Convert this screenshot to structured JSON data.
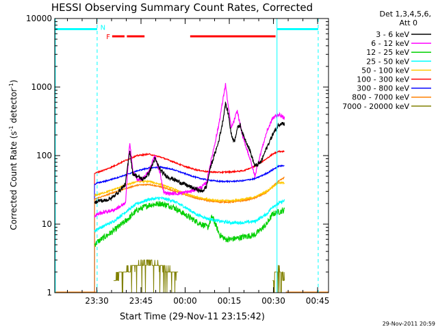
{
  "chart_data": {
    "type": "line",
    "title": "HESSI Observing Summary Count Rates, Corrected",
    "xlabel": "Start Time (29-Nov-11 23:15:42)",
    "ylabel_main": "Corrected Count Rate (s",
    "ylabel_sup1": "-1",
    "ylabel_mid": " detector",
    "ylabel_sup2": "-1",
    "ylabel_end": ")",
    "y_scale": "log",
    "ylim": [
      1,
      10000
    ],
    "xlim_minutes": [
      0,
      93
    ],
    "x_ticks": [
      {
        "min": 14.3,
        "label": "23:30"
      },
      {
        "min": 29.3,
        "label": "23:45"
      },
      {
        "min": 44.3,
        "label": "00:00"
      },
      {
        "min": 59.3,
        "label": "00:15"
      },
      {
        "min": 74.3,
        "label": "00:30"
      },
      {
        "min": 89.3,
        "label": "00:45"
      }
    ],
    "y_ticks": [
      {
        "value": 1,
        "label": "1"
      },
      {
        "value": 10,
        "label": "10"
      },
      {
        "value": 100,
        "label": "100"
      },
      {
        "value": 1000,
        "label": "1000"
      },
      {
        "value": 10000,
        "label": "10000"
      }
    ],
    "legend_header": [
      "Det 1,3,4,5,6,",
      "Att 0"
    ],
    "legend_position": "right",
    "series": [
      {
        "name": "3 - 6 keV",
        "color": "#000000",
        "noise": 0.07,
        "x": [
          13.5,
          14.5,
          17,
          20,
          24,
          25.5,
          26.5,
          28,
          30,
          32,
          34,
          36,
          38,
          42,
          46,
          50,
          51.5,
          53,
          55.5,
          57,
          58,
          59,
          60,
          61,
          62,
          63,
          64,
          66,
          68,
          70,
          72,
          74,
          76,
          77,
          78
        ],
        "y": [
          20,
          22,
          22,
          25,
          38,
          120,
          55,
          50,
          45,
          55,
          90,
          60,
          50,
          42,
          35,
          30,
          35,
          70,
          150,
          300,
          580,
          400,
          200,
          160,
          250,
          280,
          200,
          130,
          70,
          80,
          130,
          200,
          280,
          300,
          290
        ]
      },
      {
        "name": "6 - 12 keV",
        "color": "#ff00ff",
        "noise": 0.06,
        "x": [
          13.5,
          14.5,
          17,
          20,
          24,
          25.5,
          26.5,
          28,
          30,
          32,
          34,
          36,
          37,
          38,
          42,
          46,
          50,
          51.5,
          53,
          55.5,
          57,
          58,
          59,
          60,
          61,
          62,
          63,
          64,
          66,
          68,
          70,
          72,
          74,
          76,
          77,
          78
        ],
        "y": [
          13,
          14,
          15,
          16,
          20,
          160,
          60,
          45,
          45,
          60,
          100,
          50,
          30,
          28,
          28,
          30,
          35,
          40,
          80,
          250,
          600,
          1100,
          500,
          250,
          330,
          450,
          280,
          180,
          100,
          50,
          110,
          220,
          350,
          400,
          380,
          350
        ]
      },
      {
        "name": "12 - 25 keV",
        "color": "#00d000",
        "noise": 0.1,
        "x": [
          13.5,
          14.5,
          17,
          20,
          24,
          28,
          32,
          36,
          40,
          44,
          48,
          52,
          53.5,
          55,
          56,
          57,
          58,
          60,
          64,
          68,
          72,
          74,
          76,
          78
        ],
        "y": [
          5,
          5.5,
          6.5,
          8,
          11,
          16,
          19,
          20,
          18,
          14,
          11,
          9,
          13,
          9,
          7,
          6.5,
          6,
          6,
          6.5,
          7,
          10,
          14,
          15,
          16
        ]
      },
      {
        "name": "25 - 50 keV",
        "color": "#00ffff",
        "noise": 0.05,
        "x": [
          13.5,
          14.5,
          17,
          20,
          24,
          28,
          32,
          36,
          40,
          44,
          48,
          52,
          56,
          60,
          64,
          68,
          72,
          74,
          76,
          78
        ],
        "y": [
          8,
          8.5,
          9.5,
          11,
          15,
          20,
          23,
          24,
          22,
          18,
          14,
          12,
          11,
          10.5,
          10.5,
          11,
          14,
          18,
          20,
          22
        ]
      },
      {
        "name": "50 - 100 keV",
        "color": "#ffc800",
        "noise": 0.025,
        "x": [
          13.5,
          14.5,
          17,
          20,
          24,
          28,
          32,
          36,
          40,
          44,
          48,
          52,
          56,
          60,
          64,
          68,
          72,
          74,
          76,
          78
        ],
        "y": [
          26,
          27,
          29,
          32,
          37,
          42,
          42,
          38,
          33,
          28,
          25,
          23,
          22,
          22,
          23,
          25,
          30,
          35,
          40,
          40
        ]
      },
      {
        "name": "100 - 300 keV",
        "color": "#ff0000",
        "noise": 0.02,
        "x": [
          13.5,
          14.5,
          17,
          20,
          24,
          28,
          32,
          36,
          40,
          44,
          48,
          52,
          56,
          60,
          64,
          68,
          72,
          74,
          76,
          78
        ],
        "y": [
          55,
          57,
          62,
          70,
          85,
          100,
          105,
          95,
          82,
          70,
          62,
          58,
          57,
          58,
          60,
          70,
          90,
          105,
          115,
          115
        ]
      },
      {
        "name": "300 - 800 keV",
        "color": "#0000ff",
        "noise": 0.02,
        "x": [
          13.5,
          14.5,
          17,
          20,
          24,
          28,
          32,
          36,
          40,
          44,
          48,
          52,
          56,
          60,
          64,
          68,
          72,
          74,
          76,
          78
        ],
        "y": [
          38,
          40,
          42,
          46,
          52,
          60,
          66,
          68,
          63,
          55,
          48,
          44,
          42,
          42,
          43,
          46,
          55,
          62,
          70,
          72
        ]
      },
      {
        "name": "800 - 7000 keV",
        "color": "#ff8000",
        "noise": 0.02,
        "x": [
          13.5,
          14.5,
          17,
          20,
          24,
          28,
          32,
          36,
          40,
          44,
          48,
          52,
          56,
          60,
          64,
          68,
          72,
          74,
          76,
          78
        ],
        "y": [
          23,
          24,
          26,
          29,
          33,
          37,
          38,
          35,
          31,
          27,
          24,
          22,
          21,
          21,
          22,
          24,
          29,
          35,
          42,
          48
        ]
      },
      {
        "name": "7000 - 20000 keV",
        "color": "#808000",
        "noise": 0.12,
        "x": [
          20,
          22,
          24,
          25,
          27,
          29,
          32,
          34,
          36,
          38,
          40,
          42,
          74,
          75,
          76,
          77,
          78
        ],
        "y": [
          1.5,
          1.8,
          2.0,
          2.2,
          2.4,
          2.6,
          2.8,
          2.6,
          2.4,
          2.2,
          2.0,
          1.8,
          1.5,
          2.0,
          2.2,
          2.0,
          1.6
        ]
      }
    ],
    "dropout_spans": [
      [
        0,
        14
      ],
      [
        78.5,
        93
      ]
    ],
    "flag_bars": {
      "cyan": {
        "color": "#00ffff",
        "y": 7000,
        "segments": [
          [
            0,
            14.4
          ],
          [
            75.5,
            89.5
          ]
        ]
      },
      "red": {
        "color": "#ff0000",
        "y": 5500,
        "segments": [
          [
            19.5,
            23.7
          ],
          [
            24.5,
            30.5
          ],
          [
            46,
            75
          ]
        ]
      }
    },
    "flag_labels": [
      {
        "text": "N",
        "x": 15.5,
        "y": 7500,
        "color": "#00ffff"
      },
      {
        "text": "F",
        "x": 17.5,
        "y": 5500,
        "color": "#ff0000"
      }
    ],
    "vertical_markers": [
      {
        "x": 0.2,
        "color": "#00ffff",
        "style": "solid"
      },
      {
        "x": 14.4,
        "color": "#00ffff",
        "style": "dashed"
      },
      {
        "x": 75.5,
        "color": "#00ffff",
        "style": "solid"
      },
      {
        "x": 89.5,
        "color": "#00ffff",
        "style": "dashed"
      }
    ],
    "footer_date": "29-Nov-2011 20:59"
  }
}
